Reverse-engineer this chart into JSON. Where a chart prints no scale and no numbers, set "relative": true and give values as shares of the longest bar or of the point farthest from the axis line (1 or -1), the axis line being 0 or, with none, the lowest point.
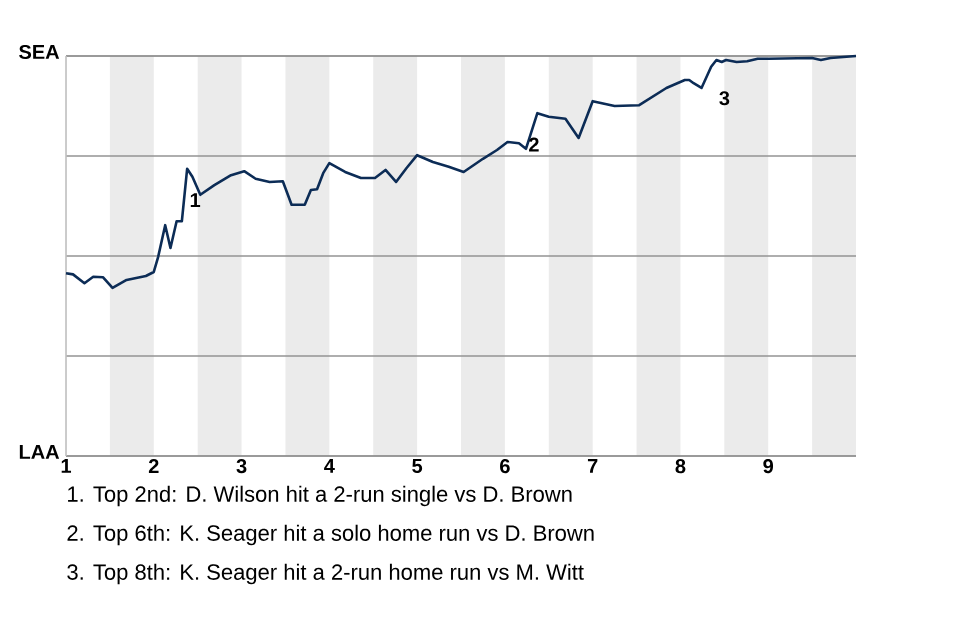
{
  "chart_data": {
    "type": "line",
    "relative": true,
    "x": [
      1.0,
      1.08,
      1.21,
      1.31,
      1.42,
      1.53,
      1.69,
      1.91,
      2.0,
      2.05,
      2.13,
      2.19,
      2.26,
      2.32,
      2.38,
      2.44,
      2.53,
      2.69,
      2.88,
      3.03,
      3.16,
      3.32,
      3.47,
      3.57,
      3.72,
      3.79,
      3.86,
      3.93,
      4.0,
      4.18,
      4.36,
      4.52,
      4.64,
      4.76,
      4.88,
      5.0,
      5.18,
      5.36,
      5.53,
      5.75,
      5.91,
      6.03,
      6.16,
      6.24,
      6.37,
      6.5,
      6.69,
      6.84,
      7.0,
      7.25,
      7.53,
      7.84,
      8.05,
      8.1,
      8.15,
      8.24,
      8.35,
      8.41,
      8.47,
      8.52,
      8.64,
      8.76,
      8.88,
      9.0,
      9.5,
      9.6,
      9.71,
      10.0
    ],
    "series": [
      {
        "color": "#0c2c56",
        "values": [
          0.457,
          0.454,
          0.432,
          0.448,
          0.447,
          0.42,
          0.44,
          0.45,
          0.46,
          0.498,
          0.577,
          0.52,
          0.587,
          0.587,
          0.718,
          0.698,
          0.653,
          0.677,
          0.702,
          0.712,
          0.693,
          0.685,
          0.687,
          0.628,
          0.628,
          0.665,
          0.667,
          0.707,
          0.732,
          0.71,
          0.695,
          0.695,
          0.715,
          0.685,
          0.72,
          0.752,
          0.735,
          0.723,
          0.71,
          0.743,
          0.765,
          0.785,
          0.782,
          0.768,
          0.857,
          0.848,
          0.843,
          0.795,
          0.887,
          0.875,
          0.877,
          0.92,
          0.94,
          0.94,
          0.932,
          0.92,
          0.973,
          0.99,
          0.985,
          0.99,
          0.985,
          0.987,
          0.993,
          0.993,
          0.995,
          0.99,
          0.995,
          1.0
        ]
      }
    ],
    "xlim": [
      1,
      10
    ],
    "xticks": [
      1,
      2,
      3,
      4,
      5,
      6,
      7,
      8,
      9
    ],
    "grid": "y",
    "bands": [
      {
        "axis": "x",
        "from": 1.5,
        "to": 2,
        "color": "#ebebeb"
      },
      {
        "axis": "x",
        "from": 2.5,
        "to": 3,
        "color": "#ebebeb"
      },
      {
        "axis": "x",
        "from": 3.5,
        "to": 4,
        "color": "#ebebeb"
      },
      {
        "axis": "x",
        "from": 4.5,
        "to": 5,
        "color": "#ebebeb"
      },
      {
        "axis": "x",
        "from": 5.5,
        "to": 6,
        "color": "#ebebeb"
      },
      {
        "axis": "x",
        "from": 6.5,
        "to": 7,
        "color": "#ebebeb"
      },
      {
        "axis": "x",
        "from": 7.5,
        "to": 8,
        "color": "#ebebeb"
      },
      {
        "axis": "x",
        "from": 8.5,
        "to": 9,
        "color": "#ebebeb"
      },
      {
        "axis": "x",
        "from": 9.5,
        "to": 10,
        "color": "#ebebeb"
      }
    ],
    "ref_lines": [
      {
        "axis": "y",
        "value": 1,
        "label": "SEA"
      },
      {
        "axis": "y",
        "value": 0,
        "label": "LAA"
      }
    ],
    "annotations": [
      {
        "text": "1",
        "x": 2.38,
        "y": 0.718
      },
      {
        "text": "2",
        "x": 6.24,
        "y": 0.857
      },
      {
        "text": "3",
        "x": 8.41,
        "y": 0.973
      },
      "1. Top 2nd: D. Wilson hit a 2-run single vs D. Brown",
      "2. Top 6th: K. Seager hit a solo home run vs D. Brown",
      "3. Top 8th: K. Seager hit a 2-run home run vs M. Witt"
    ]
  }
}
